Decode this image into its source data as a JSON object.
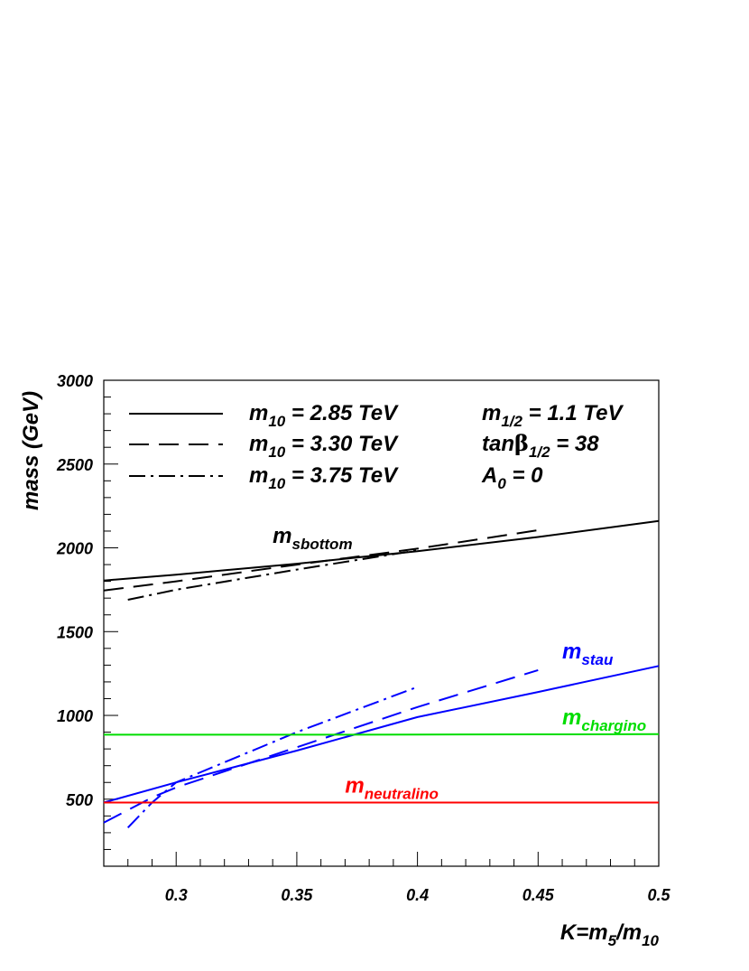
{
  "chart_data": {
    "type": "line",
    "xlabel": "K=m",
    "xlabel_sub": "5",
    "xlabel_tail": "/m",
    "xlabel_sub2": "10",
    "ylabel": "mass (GeV)",
    "xlim": [
      0.27,
      0.5
    ],
    "ylim": [
      100,
      3000
    ],
    "xticks": [
      0.3,
      0.35,
      0.4,
      0.45,
      0.5
    ],
    "yticks": [
      500,
      1000,
      1500,
      2000,
      2500,
      3000
    ],
    "grid": false,
    "legend": {
      "placement": "top-left",
      "entries": [
        {
          "style": "solid",
          "main": "m",
          "sub": "10",
          "tail": " = 2.85 TeV"
        },
        {
          "style": "dashed",
          "main": "m",
          "sub": "10",
          "tail": " = 3.30 TeV"
        },
        {
          "style": "dashdot",
          "main": "m",
          "sub": "10",
          "tail": " = 3.75 TeV"
        }
      ],
      "params": [
        {
          "main": "m",
          "sub": "1/2",
          "tail": " = 1.1 TeV"
        },
        {
          "main": "tan",
          "greek": "β",
          "sub": "1/2",
          "tail": " = 38"
        },
        {
          "main": "A",
          "sub": "0",
          "tail": " = 0"
        }
      ]
    },
    "annotations": [
      {
        "main": "m",
        "sub": "sbottom",
        "color": "#000000",
        "x": 0.34,
        "y": 2030
      },
      {
        "main": "m",
        "sub": "stau",
        "color": "#0000ff",
        "x": 0.46,
        "y": 1340
      },
      {
        "main": "m",
        "sub": "chargino",
        "color": "#00dd00",
        "x": 0.46,
        "y": 945
      },
      {
        "main": "m",
        "sub": "neutralino",
        "color": "#ff0000",
        "x": 0.37,
        "y": 540
      }
    ],
    "series": [
      {
        "color": "#000000",
        "style": "solid",
        "x": [
          0.27,
          0.3,
          0.35,
          0.4,
          0.45,
          0.5
        ],
        "y": [
          1805,
          1840,
          1905,
          1980,
          2065,
          2160
        ]
      },
      {
        "color": "#000000",
        "style": "dashed",
        "x": [
          0.27,
          0.3,
          0.35,
          0.4,
          0.45
        ],
        "y": [
          1745,
          1800,
          1900,
          1995,
          2105
        ]
      },
      {
        "color": "#000000",
        "style": "dashdot",
        "x": [
          0.28,
          0.3,
          0.35,
          0.4
        ],
        "y": [
          1690,
          1750,
          1870,
          1985
        ]
      },
      {
        "color": "#0000ff",
        "style": "solid",
        "x": [
          0.27,
          0.3,
          0.35,
          0.4,
          0.45,
          0.5
        ],
        "y": [
          480,
          600,
          790,
          990,
          1140,
          1295
        ]
      },
      {
        "color": "#0000ff",
        "style": "dashed",
        "x": [
          0.27,
          0.29,
          0.3,
          0.35,
          0.4,
          0.45
        ],
        "y": [
          360,
          510,
          570,
          810,
          1050,
          1270
        ]
      },
      {
        "color": "#0000ff",
        "style": "dashdot",
        "x": [
          0.28,
          0.29,
          0.3,
          0.35,
          0.4
        ],
        "y": [
          330,
          480,
          600,
          900,
          1170
        ]
      },
      {
        "color": "#00dd00",
        "style": "solid",
        "x": [
          0.27,
          0.3,
          0.35,
          0.4,
          0.45,
          0.5
        ],
        "y": [
          885,
          885,
          885,
          886,
          887,
          888
        ]
      },
      {
        "color": "#ff0000",
        "style": "solid",
        "x": [
          0.27,
          0.5
        ],
        "y": [
          480,
          480
        ]
      }
    ]
  }
}
